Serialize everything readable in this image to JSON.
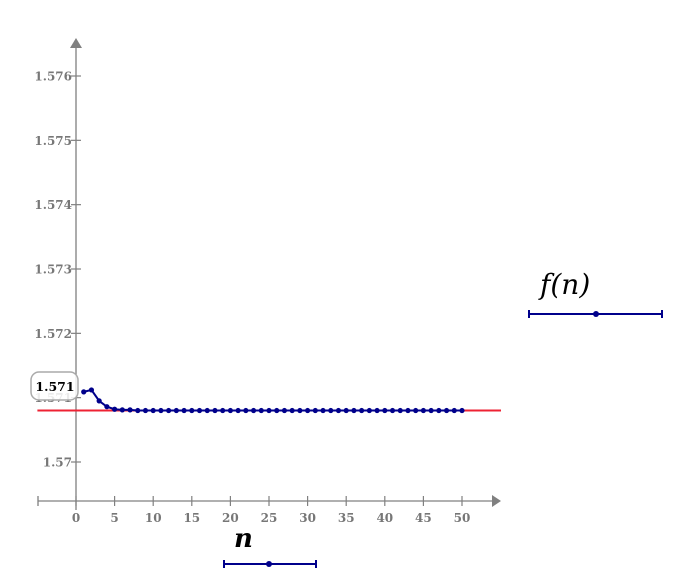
{
  "chart_data": {
    "type": "line",
    "title": "",
    "xlabel": "n",
    "ylabel": "f(n)",
    "xlim": [
      -5,
      55
    ],
    "ylim": [
      1.5694,
      1.5765
    ],
    "x_ticks": [
      0,
      5,
      10,
      15,
      20,
      25,
      30,
      35,
      40,
      45,
      50
    ],
    "x_tick_labels": [
      "0",
      "5",
      "10",
      "15",
      "20",
      "25",
      "30",
      "35",
      "40",
      "45",
      "50"
    ],
    "y_ticks": [
      1.57,
      1.571,
      1.572,
      1.573,
      1.574,
      1.575,
      1.576
    ],
    "y_tick_labels": [
      "1.57",
      "1.571",
      "1.572",
      "1.573",
      "1.574",
      "1.575",
      "1.576"
    ],
    "grid": false,
    "series": [
      {
        "name": "f(n)",
        "color": "#00008B",
        "marker": "circle",
        "x": [
          1,
          2,
          3,
          4,
          5,
          6,
          7,
          8,
          9,
          10,
          11,
          12,
          13,
          14,
          15,
          16,
          17,
          18,
          19,
          20,
          21,
          22,
          23,
          24,
          25,
          26,
          27,
          28,
          29,
          30,
          31,
          32,
          33,
          34,
          35,
          36,
          37,
          38,
          39,
          40,
          41,
          42,
          43,
          44,
          45,
          46,
          47,
          48,
          49,
          50
        ],
        "values": [
          1.57109,
          1.57112,
          1.57095,
          1.57086,
          1.57082,
          1.57081,
          1.57081,
          1.5708,
          1.5708,
          1.5708,
          1.5708,
          1.5708,
          1.5708,
          1.5708,
          1.5708,
          1.5708,
          1.5708,
          1.5708,
          1.5708,
          1.5708,
          1.5708,
          1.5708,
          1.5708,
          1.5708,
          1.5708,
          1.5708,
          1.5708,
          1.5708,
          1.5708,
          1.5708,
          1.5708,
          1.5708,
          1.5708,
          1.5708,
          1.5708,
          1.5708,
          1.5708,
          1.5708,
          1.5708,
          1.5708,
          1.5708,
          1.5708,
          1.5708,
          1.5708,
          1.5708,
          1.5708,
          1.5708,
          1.5708,
          1.5708,
          1.5708
        ]
      }
    ],
    "reference_lines": [
      {
        "type": "horizontal",
        "y": 1.5708,
        "color": "#EE2233",
        "x_from": -5,
        "x_to": 55.5
      }
    ],
    "annotations": [
      {
        "text": "1.571",
        "kind": "y-readout-box",
        "y": 1.5711
      }
    ],
    "legend": {
      "y_legend": {
        "label": "f(n)",
        "position": "right"
      },
      "x_legend": {
        "label": "n",
        "position": "bottom"
      }
    }
  },
  "legend": {
    "y_label": "f(n)",
    "x_label": "n"
  },
  "readout": {
    "value": "1.571"
  },
  "colors": {
    "axis": "#808080",
    "trace": "#00008B",
    "reference": "#EE2233",
    "tick_text": "#777777"
  }
}
